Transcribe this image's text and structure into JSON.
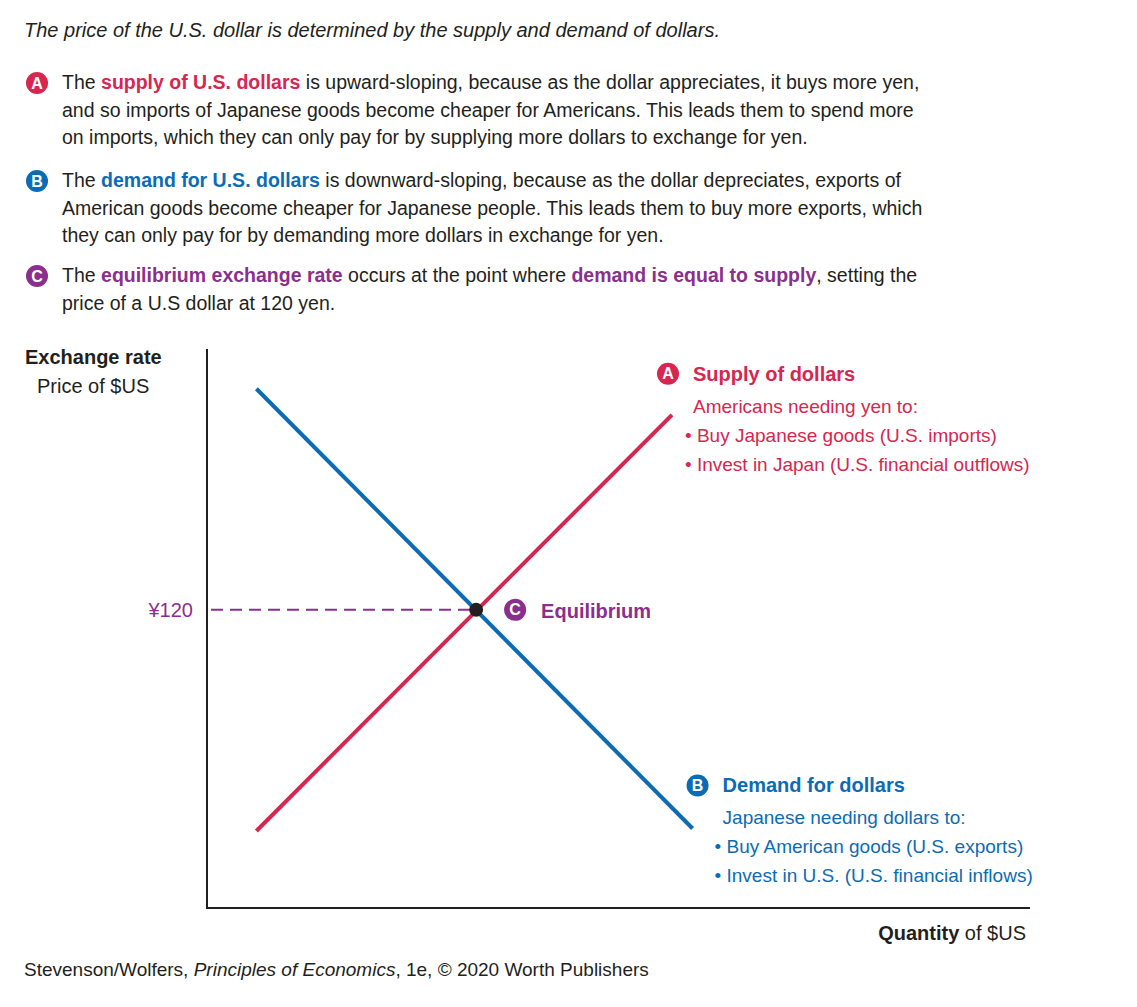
{
  "title": "The price of the U.S. dollar is determined by the supply and demand of dollars.",
  "notes": [
    {
      "badge": "A",
      "color": "#d7264f",
      "lines": [
        [
          {
            "text": "The "
          },
          {
            "text": "supply of U.S. dollars",
            "color": "#d7264f"
          },
          {
            "text": " is upward-sloping, because as the dollar appreciates, it buys more yen,"
          }
        ],
        [
          {
            "text": "and so imports of Japanese goods become cheaper for Americans. This leads them to spend more"
          }
        ],
        [
          {
            "text": "on imports, which they can only pay for by supplying more dollars to exchange for yen."
          }
        ]
      ]
    },
    {
      "badge": "B",
      "color": "#0b6cb5",
      "lines": [
        [
          {
            "text": "The "
          },
          {
            "text": "demand for U.S. dollars",
            "color": "#0b6cb5"
          },
          {
            "text": " is downward-sloping, because as the dollar depreciates, exports of"
          }
        ],
        [
          {
            "text": "American goods become cheaper for Japanese people. This leads them to buy more exports, which"
          }
        ],
        [
          {
            "text": "they can only pay for by demanding more dollars in exchange for yen."
          }
        ]
      ]
    },
    {
      "badge": "C",
      "color": "#8b2f8e",
      "lines": [
        [
          {
            "text": "The "
          },
          {
            "text": "equilibrium exchange rate",
            "color": "#8b2f8e"
          },
          {
            "text": " occurs at the point where "
          },
          {
            "text": "demand is equal to supply",
            "color": "#8b2f8e"
          },
          {
            "text": ", setting the"
          }
        ],
        [
          {
            "text": "price of a U.S dollar at 120 yen."
          }
        ]
      ]
    }
  ],
  "source": [
    {
      "text": "Stevenson/Wolfers, "
    },
    {
      "text": "Principles of Economics",
      "italic": true
    },
    {
      "text": ", 1e, © 2020 Worth Publishers"
    }
  ],
  "chart_data": {
    "type": "line",
    "y_label": "Exchange rate",
    "y_sublabel": "Price of $US",
    "x_label": [
      {
        "text": "Quantity",
        "bold": true
      },
      {
        "text": " of $US"
      }
    ],
    "xlim": [
      0,
      100
    ],
    "ylim": [
      0,
      225
    ],
    "yticks": [
      {
        "value": 120,
        "label": "¥120"
      }
    ],
    "tick_labels": "y",
    "series": [
      {
        "name": "Supply of dollars",
        "badge": "A",
        "color": "#d7264f",
        "x": [
          6,
          56.5
        ],
        "values": [
          31,
          198.5
        ],
        "description": [
          "Americans needing yen to:",
          "• Buy Japanese goods (U.S. imports)",
          "• Invest in Japan (U.S. financial outflows)"
        ]
      },
      {
        "name": "Demand for dollars",
        "badge": "B",
        "color": "#0b6cb5",
        "x": [
          6,
          59
        ],
        "values": [
          209,
          32
        ],
        "description": [
          "Japanese needing dollars to:",
          "• Buy American goods (U.S. exports)",
          "• Invest in U.S. (U.S. financial inflows)"
        ]
      }
    ],
    "annotations": [
      {
        "badge": "C",
        "text": "Equilibrium",
        "x": 32.7,
        "y": 120,
        "color": "#8b2f8e"
      }
    ]
  }
}
